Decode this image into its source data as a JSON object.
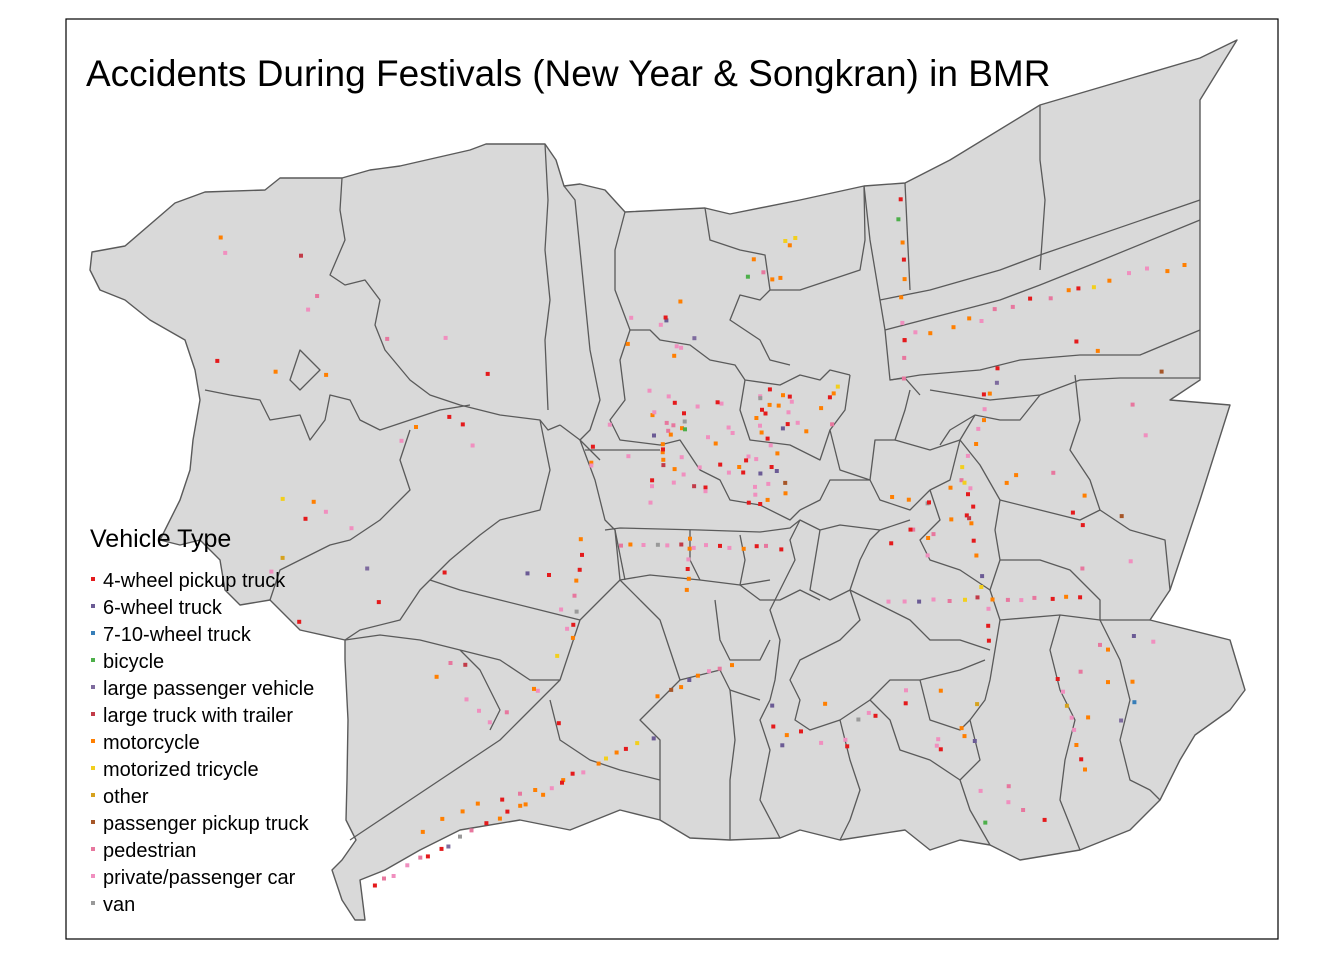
{
  "title": "Accidents During Festivals (New Year & Songkran) in BMR",
  "legend": {
    "title": "Vehicle Type",
    "items": [
      {
        "label": "4-wheel pickup truck",
        "color": "#e41a1c"
      },
      {
        "label": "6-wheel truck",
        "color": "#6b5b95"
      },
      {
        "label": "7-10-wheel truck",
        "color": "#377eb8"
      },
      {
        "label": "bicycle",
        "color": "#4daf4a"
      },
      {
        "label": "large passenger vehicle",
        "color": "#7e6b9e"
      },
      {
        "label": "large truck with trailer",
        "color": "#c23b48"
      },
      {
        "label": "motorcycle",
        "color": "#ff7f00"
      },
      {
        "label": "motorized tricycle",
        "color": "#f2cf1d"
      },
      {
        "label": "other",
        "color": "#d6a21e"
      },
      {
        "label": "passenger pickup truck",
        "color": "#a65628"
      },
      {
        "label": "pedestrian",
        "color": "#e7779e"
      },
      {
        "label": "private/passenger car",
        "color": "#f08fbf"
      },
      {
        "label": "van",
        "color": "#999999"
      }
    ]
  }
}
